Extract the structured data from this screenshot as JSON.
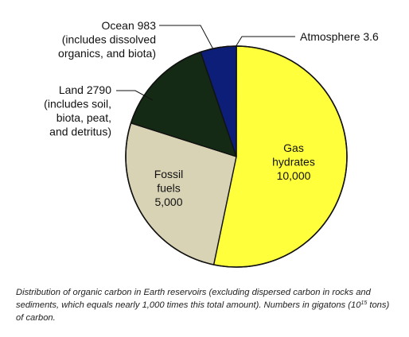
{
  "chart_data": {
    "type": "pie",
    "title": "",
    "unit": "gigatons of carbon",
    "slices": [
      {
        "key": "atmosphere",
        "name": "Atmosphere",
        "value": 3.6,
        "value_text": "3.6",
        "label_lines": [
          "Atmosphere  3.6"
        ],
        "label_position": "outside",
        "color": "#ffffff"
      },
      {
        "key": "gas-hydrates",
        "name": "Gas hydrates",
        "value": 10000,
        "value_text": "10,000",
        "label_lines": [
          "Gas",
          "hydrates",
          "10,000"
        ],
        "label_position": "inside",
        "color": "#ffff3c"
      },
      {
        "key": "fossil-fuels",
        "name": "Fossil fuels",
        "value": 5000,
        "value_text": "5,000",
        "label_lines": [
          "Fossil",
          "fuels",
          "5,000"
        ],
        "label_position": "inside",
        "color": "#d9d3b5"
      },
      {
        "key": "land",
        "name": "Land",
        "value": 2790,
        "value_text": "2790",
        "label_lines": [
          "Land  2790",
          "(includes soil,",
          "biota, peat,",
          "and detritus)"
        ],
        "label_position": "outside",
        "color": "#142a14"
      },
      {
        "key": "ocean",
        "name": "Ocean",
        "value": 983,
        "value_text": "983",
        "label_lines": [
          "Ocean  983",
          "(includes dissolved",
          "organics, and biota)"
        ],
        "label_position": "outside",
        "color": "#0c1e78"
      }
    ],
    "start_clockwise_from": "12 o'clock",
    "legend": "none"
  },
  "caption": {
    "text_before_exponent": "Distribution of organic carbon in Earth reservoirs (excluding dispersed carbon in rocks and sediments, which equals nearly 1,000 times this total amount).  Numbers in gigatons (10",
    "exponent": "15",
    "text_after_exponent": " tons) of carbon."
  }
}
